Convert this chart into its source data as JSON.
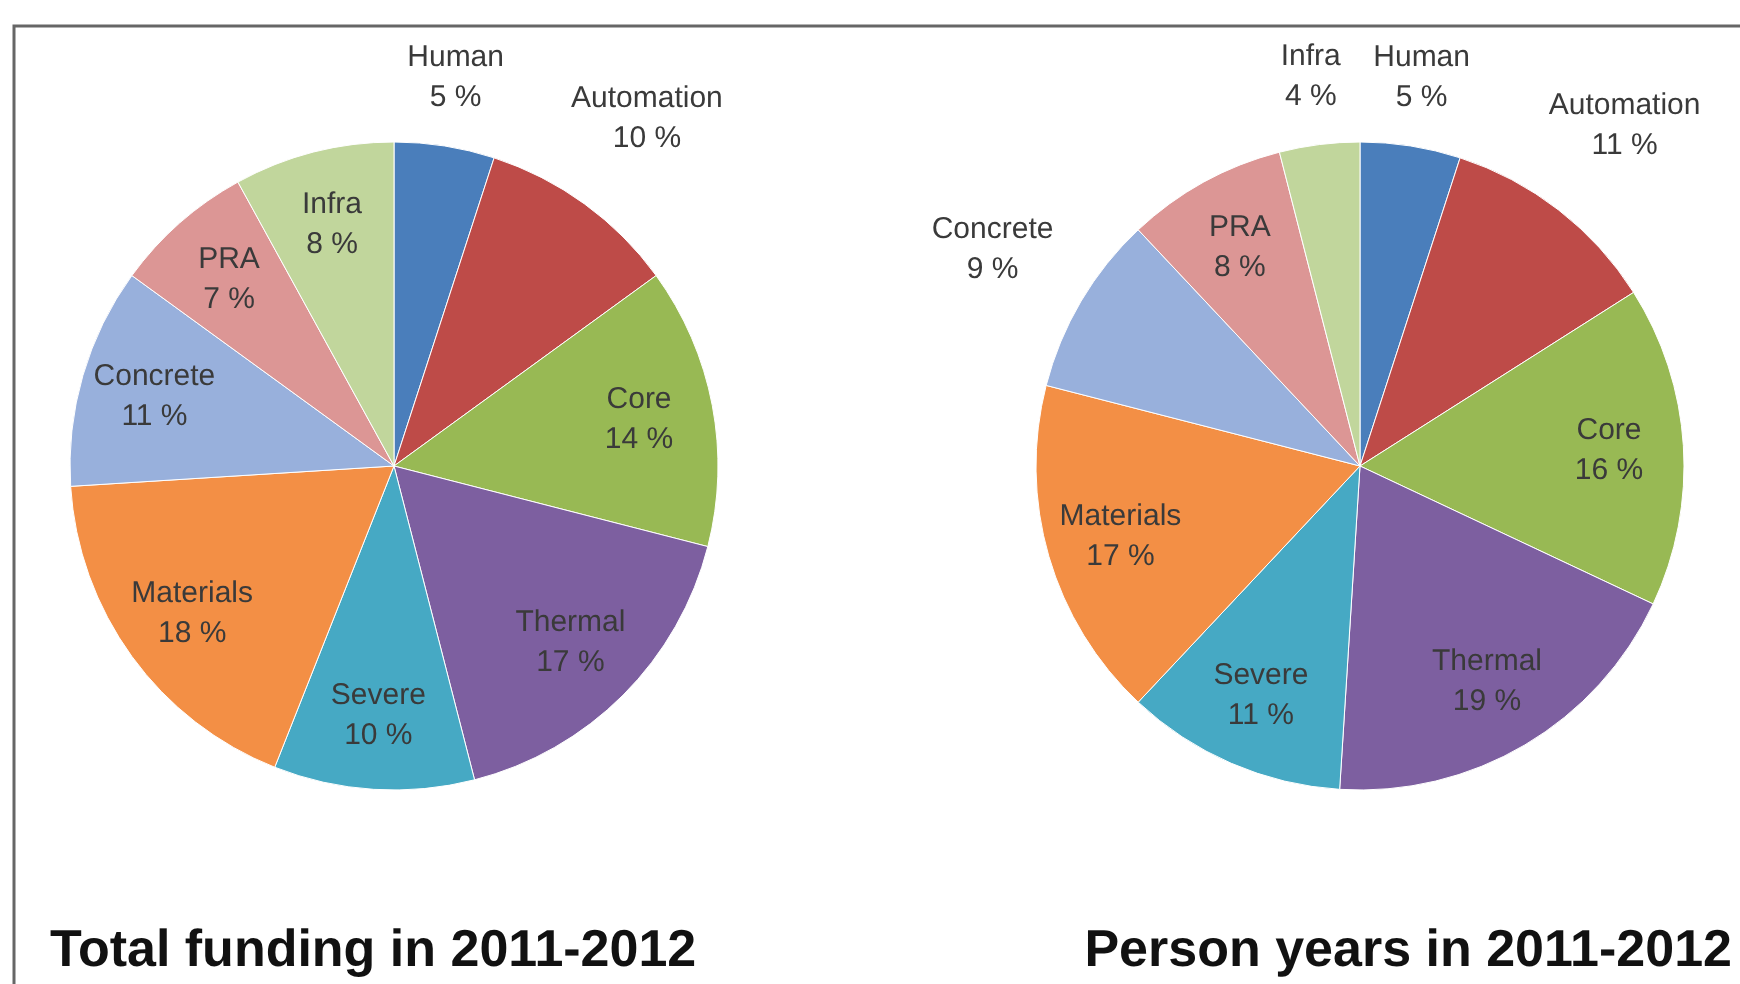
{
  "chart_data": [
    {
      "type": "pie",
      "title": "Total funding in 2011-2012",
      "categories": [
        "Human",
        "Automation",
        "Core",
        "Thermal",
        "Severe",
        "Materials",
        "Concrete",
        "PRA",
        "Infra"
      ],
      "values": [
        5,
        10,
        14,
        17,
        10,
        18,
        11,
        7,
        8
      ],
      "value_labels": [
        "5 %",
        "10 %",
        "14 %",
        "17 %",
        "10 %",
        "18 %",
        "11 %",
        "7 %",
        "8 %"
      ],
      "colors": [
        "#4a7ebb",
        "#be4b48",
        "#98b954",
        "#7d5fa0",
        "#46a9c4",
        "#f38f45",
        "#98b0dc",
        "#dc9695",
        "#c1d69c"
      ]
    },
    {
      "type": "pie",
      "title": "Person years in 2011-2012",
      "categories": [
        "Human",
        "Automation",
        "Core",
        "Thermal",
        "Severe",
        "Materials",
        "Concrete",
        "PRA",
        "Infra"
      ],
      "values": [
        5,
        11,
        16,
        19,
        11,
        17,
        9,
        8,
        4
      ],
      "value_labels": [
        "5 %",
        "11 %",
        "16 %",
        "19 %",
        "11 %",
        "17 %",
        "9 %",
        "8 %",
        "4 %"
      ],
      "colors": [
        "#4a7ebb",
        "#be4b48",
        "#98b954",
        "#7d5fa0",
        "#46a9c4",
        "#f38f45",
        "#98b0dc",
        "#dc9695",
        "#c1d69c"
      ]
    }
  ]
}
